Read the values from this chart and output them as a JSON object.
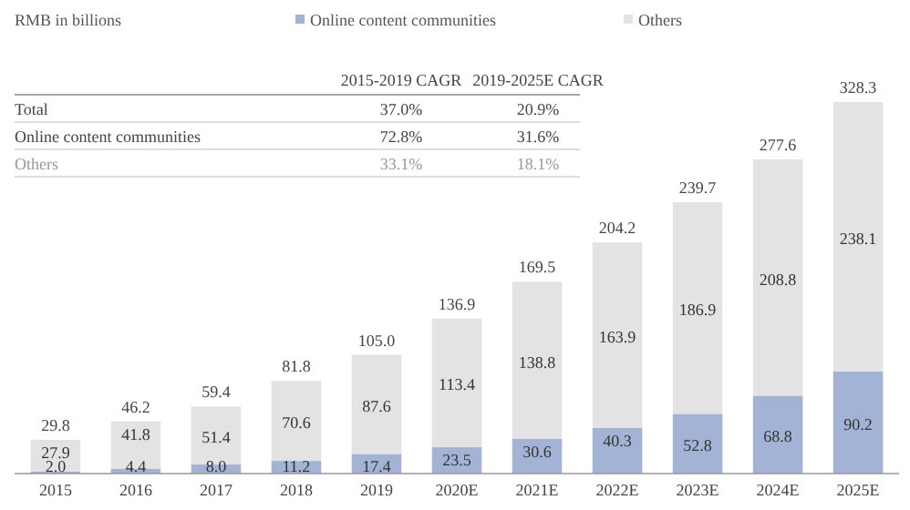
{
  "chart_data": {
    "type": "bar",
    "stacked": true,
    "ylabel": "RMB in billions",
    "legend": "top",
    "categories": [
      "2015",
      "2016",
      "2017",
      "2018",
      "2019",
      "2020E",
      "2021E",
      "2022E",
      "2023E",
      "2024E",
      "2025E"
    ],
    "series": [
      {
        "name": "Online content communities",
        "color": "#a3b3d6",
        "values": [
          2.0,
          4.4,
          8.0,
          11.2,
          17.4,
          23.5,
          30.6,
          40.3,
          52.8,
          68.8,
          90.2
        ],
        "value_labels": [
          "2.0",
          "4.4",
          "8.0",
          "11.2",
          "17.4",
          "23.5",
          "30.6",
          "40.3",
          "52.8",
          "68.8",
          "90.2"
        ]
      },
      {
        "name": "Others",
        "color": "#e3e3e3",
        "values": [
          27.9,
          41.8,
          51.4,
          70.6,
          87.6,
          113.4,
          138.8,
          163.9,
          186.9,
          208.8,
          238.1
        ],
        "value_labels": [
          "27.9",
          "41.8",
          "51.4",
          "70.6",
          "87.6",
          "113.4",
          "138.8",
          "163.9",
          "186.9",
          "208.8",
          "238.1"
        ]
      }
    ],
    "totals": [
      "29.8",
      "46.2",
      "59.4",
      "81.8",
      "105.0",
      "136.9",
      "169.5",
      "204.2",
      "239.7",
      "277.6",
      "328.3"
    ],
    "annotations": [
      "2015-2019 CAGR",
      "2019-2025E CAGR",
      "Total",
      "37.0%",
      "20.9%",
      "Online content communities",
      "72.8%",
      "31.6%",
      "Others",
      "33.1%",
      "18.1%"
    ]
  }
}
